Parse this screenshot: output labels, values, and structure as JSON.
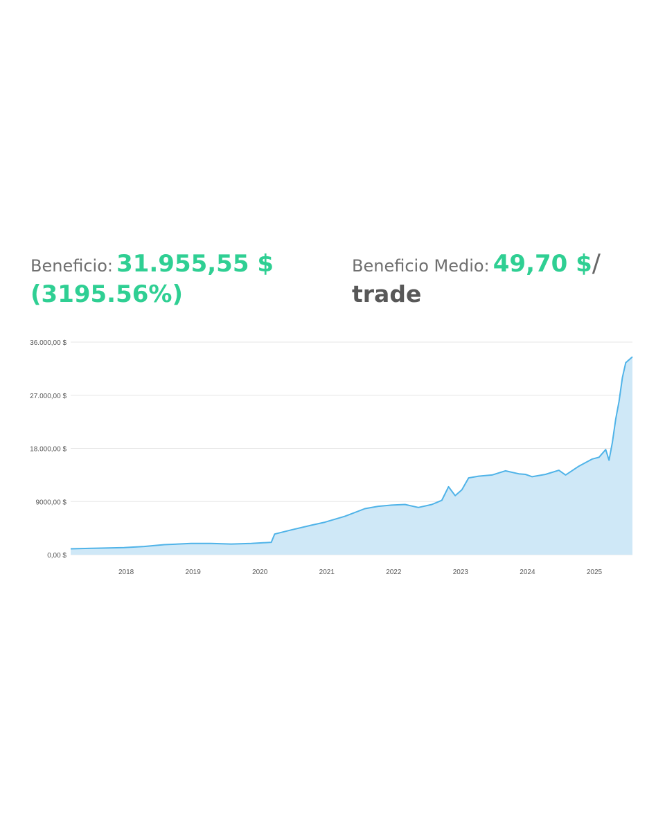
{
  "stats": {
    "profit_label": "Beneficio:",
    "profit_value": "31.955,55 $",
    "profit_percent": "(3195.56%)",
    "avg_label": "Beneficio Medio:",
    "avg_value": "49,70 $",
    "avg_slash": "/",
    "avg_unit": "trade"
  },
  "colors": {
    "accent": "#2fcf93",
    "line": "#4fb3e8",
    "fill": "#cfe8f7",
    "grid": "#e6e6e6"
  },
  "chart_data": {
    "type": "area",
    "ylim": [
      0,
      36000
    ],
    "yticks": [
      {
        "value": 0,
        "label": "0,00 $"
      },
      {
        "value": 9000,
        "label": "9000,00 $"
      },
      {
        "value": 18000,
        "label": "18.000,00 $"
      },
      {
        "value": 27000,
        "label": "27.000,00 $"
      },
      {
        "value": 36000,
        "label": "36.000,00 $"
      }
    ],
    "xlim": [
      2017.2,
      2025.6
    ],
    "xticks": [
      "2018",
      "2019",
      "2020",
      "2021",
      "2022",
      "2023",
      "2024",
      "2025"
    ],
    "series": [
      {
        "x": [
          2017.2,
          2017.6,
          2018.0,
          2018.3,
          2018.6,
          2019.0,
          2019.3,
          2019.6,
          2019.9,
          2020.2,
          2020.25,
          2020.5,
          2020.8,
          2021.0,
          2021.3,
          2021.6,
          2021.8,
          2022.0,
          2022.2,
          2022.4,
          2022.6,
          2022.75,
          2022.85,
          2022.95,
          2023.05,
          2023.15,
          2023.3,
          2023.5,
          2023.7,
          2023.9,
          2024.0,
          2024.1,
          2024.3,
          2024.5,
          2024.6,
          2024.8,
          2025.0,
          2025.1,
          2025.2,
          2025.25,
          2025.3,
          2025.35,
          2025.4,
          2025.45,
          2025.5,
          2025.6
        ],
        "y": [
          1000,
          1100,
          1200,
          1400,
          1700,
          1900,
          1900,
          1800,
          1900,
          2100,
          3500,
          4200,
          5000,
          5500,
          6500,
          7800,
          8200,
          8400,
          8500,
          8000,
          8500,
          9200,
          11500,
          10000,
          11000,
          13000,
          13300,
          13500,
          14200,
          13700,
          13600,
          13200,
          13600,
          14300,
          13500,
          15000,
          16200,
          16500,
          17800,
          16000,
          19000,
          23000,
          26000,
          30000,
          32500,
          33500
        ]
      }
    ]
  }
}
